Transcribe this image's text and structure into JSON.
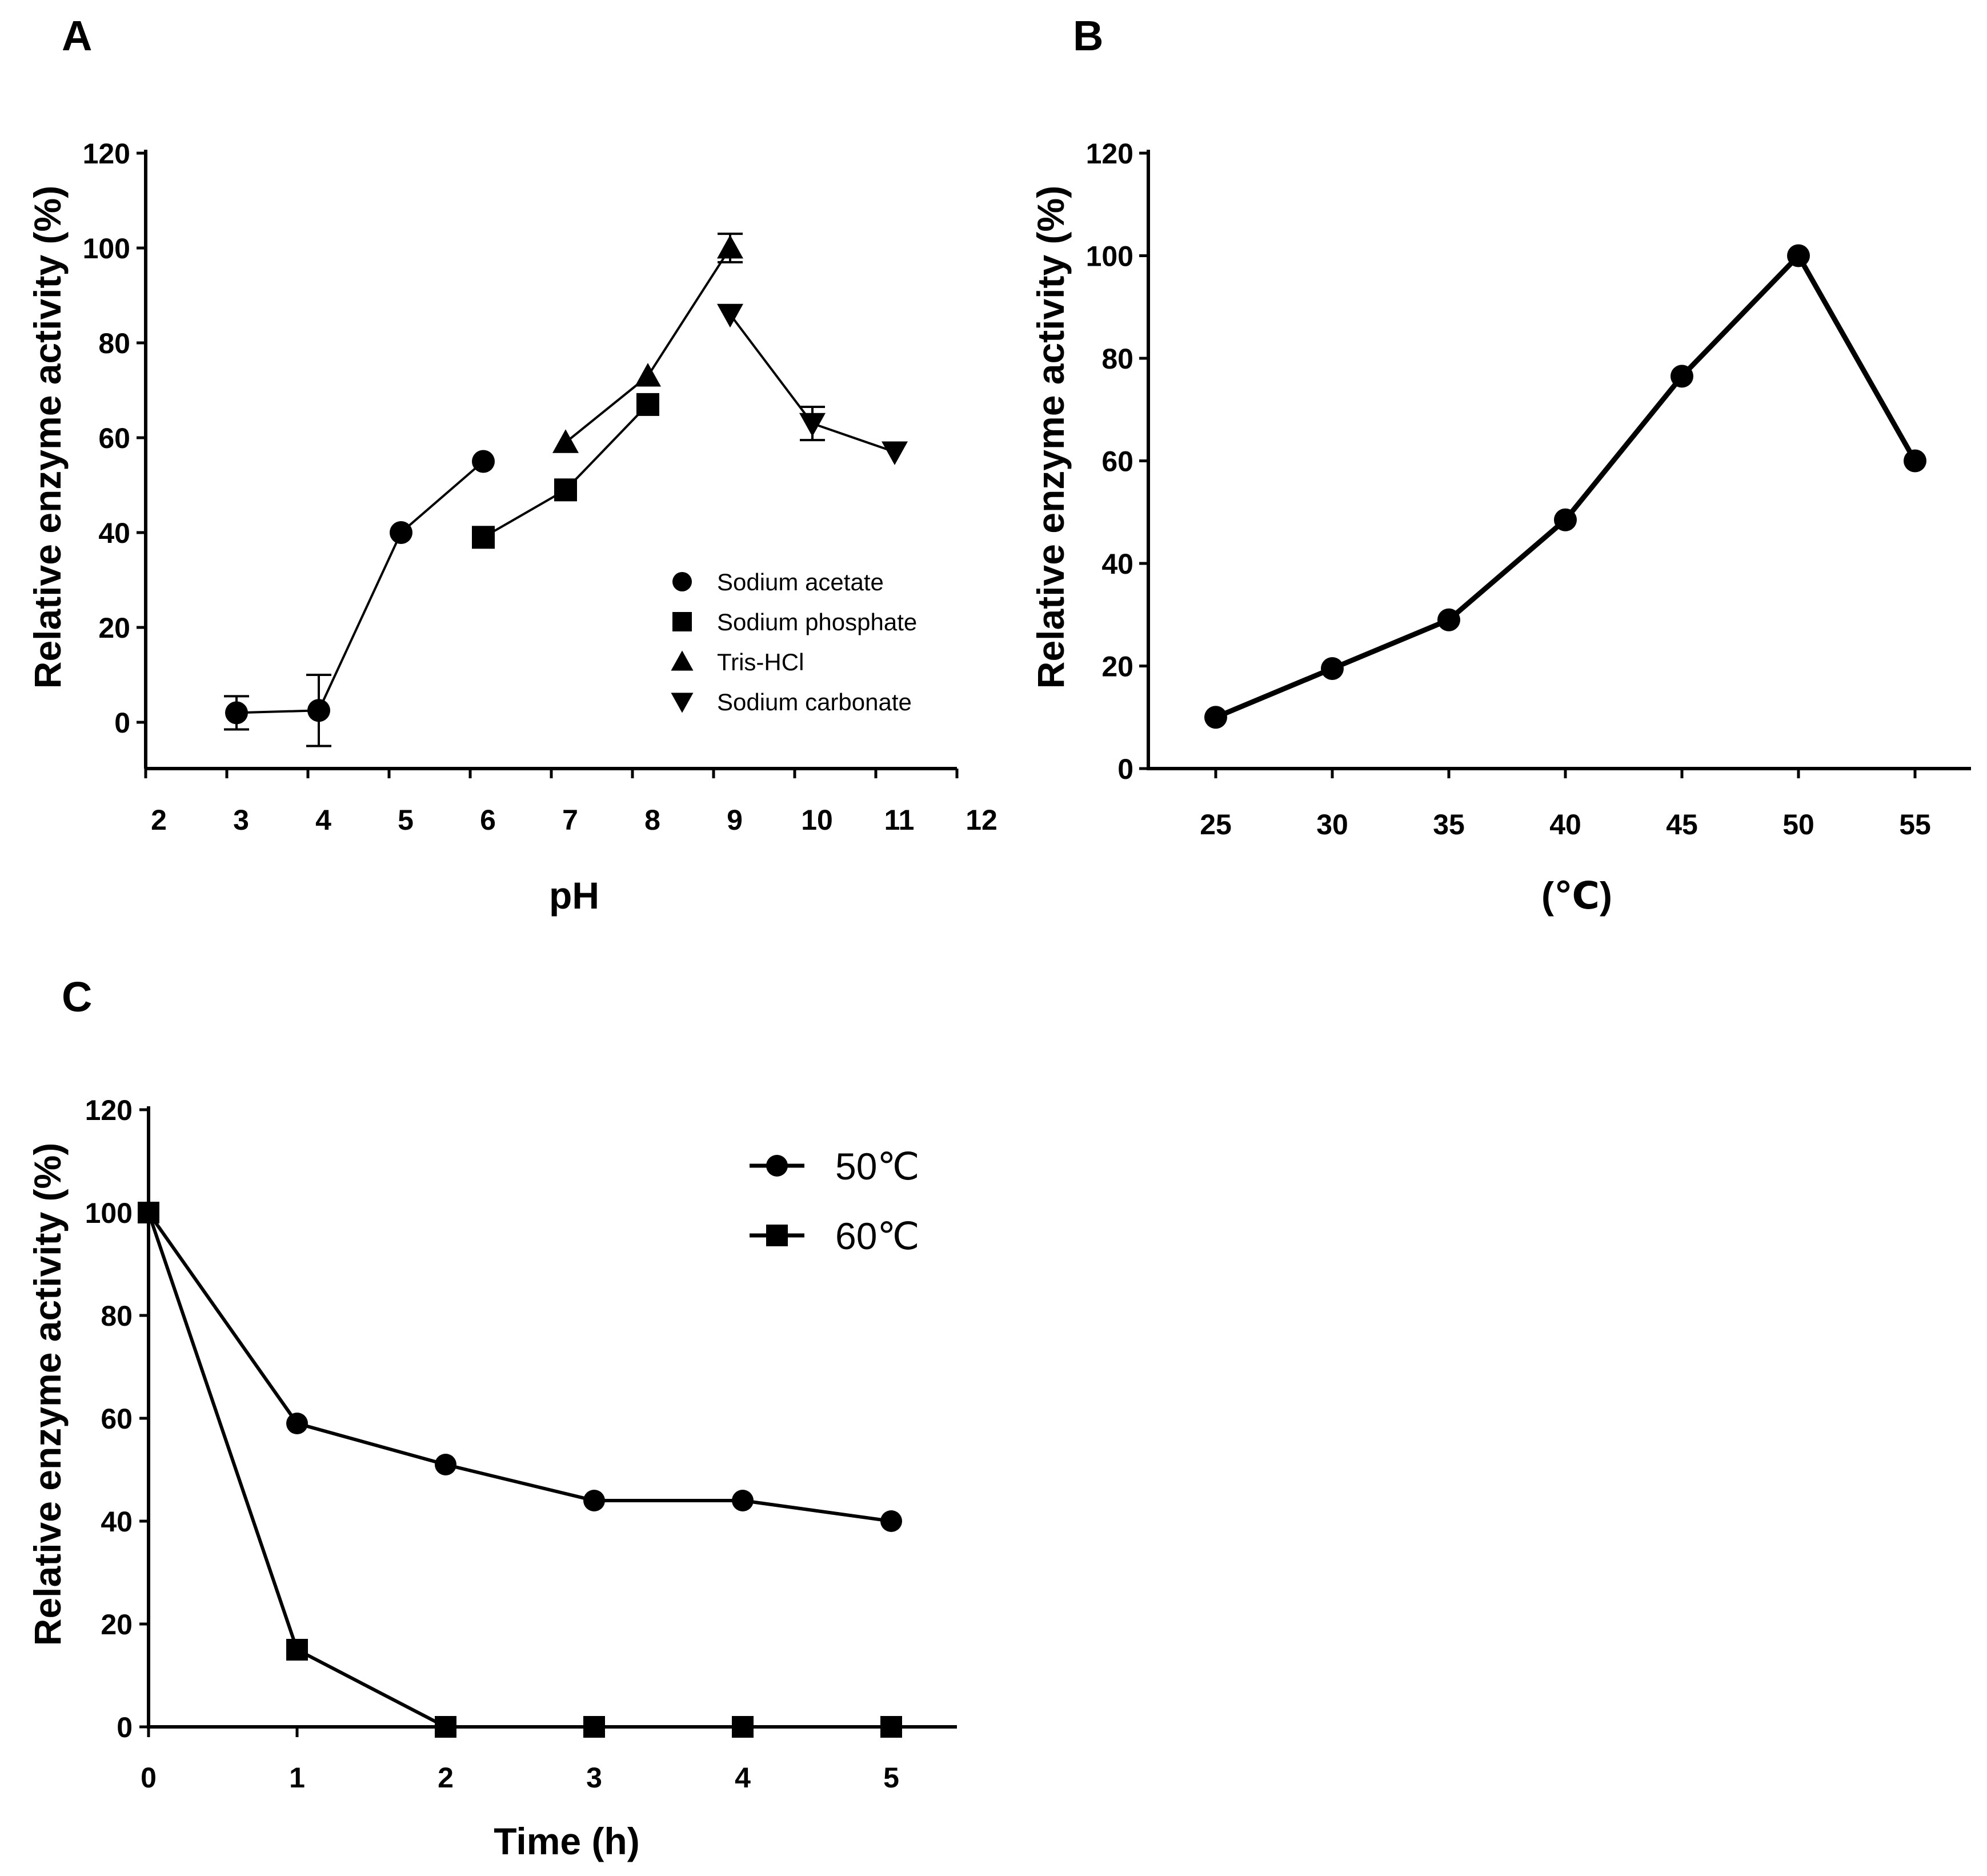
{
  "chart_data": [
    {
      "panel": "A",
      "type": "line",
      "xlabel": "pH",
      "ylabel": "Relative enzyme activity (%)",
      "xlim": [
        2,
        12
      ],
      "ylim": [
        -10,
        120
      ],
      "xticks": [
        "2",
        "3",
        "4",
        "5",
        "6",
        "7",
        "8",
        "9",
        "10",
        "11",
        "12"
      ],
      "yticks": [
        "0",
        "20",
        "40",
        "60",
        "80",
        "100",
        "120"
      ],
      "legend_position": "lower-right",
      "series": [
        {
          "name": "Sodium acetate",
          "marker": "circle",
          "x": [
            3,
            4,
            5,
            6
          ],
          "y": [
            2,
            2.5,
            40,
            55
          ],
          "err": [
            3.5,
            7.5,
            0,
            0
          ]
        },
        {
          "name": "Sodium phosphate",
          "marker": "square",
          "x": [
            6,
            7,
            8
          ],
          "y": [
            39,
            49,
            67
          ],
          "err": [
            0,
            0,
            0
          ]
        },
        {
          "name": "Tris-HCl",
          "marker": "triangle-up",
          "x": [
            7,
            8,
            9
          ],
          "y": [
            59,
            73,
            100
          ],
          "err": [
            0,
            0,
            3
          ]
        },
        {
          "name": "Sodium carbonate",
          "marker": "triangle-down",
          "x": [
            9,
            10,
            11
          ],
          "y": [
            86,
            63,
            57
          ],
          "err": [
            0,
            3.5,
            0
          ]
        }
      ]
    },
    {
      "panel": "B",
      "type": "line",
      "xlabel": "(℃)",
      "ylabel": "Relative enzyme activity (%)",
      "categories": [
        "25",
        "30",
        "35",
        "40",
        "45",
        "50",
        "55"
      ],
      "ylim": [
        0,
        120
      ],
      "yticks": [
        "0",
        "20",
        "40",
        "60",
        "80",
        "100",
        "120"
      ],
      "series": [
        {
          "name": "activity",
          "marker": "circle",
          "values": [
            10,
            19.5,
            29,
            48.5,
            76.5,
            100,
            60
          ]
        }
      ]
    },
    {
      "panel": "C",
      "type": "line",
      "xlabel": "Time (h)",
      "ylabel": "Relative enzyme activity (%)",
      "xlim": [
        0,
        5.5
      ],
      "xticks": [
        "0",
        "1",
        "2",
        "3",
        "4",
        "5"
      ],
      "ylim": [
        0,
        120
      ],
      "yticks": [
        "0",
        "20",
        "40",
        "60",
        "80",
        "100",
        "120"
      ],
      "legend_position": "top-right",
      "series": [
        {
          "name": "50℃",
          "marker": "circle",
          "x": [
            0,
            1,
            2,
            3,
            4,
            5
          ],
          "y": [
            100,
            59,
            51,
            44,
            44,
            40
          ]
        },
        {
          "name": "60℃",
          "marker": "square",
          "x": [
            0,
            1,
            2,
            3,
            4,
            5
          ],
          "y": [
            100,
            15,
            0,
            0,
            0,
            0
          ]
        }
      ]
    }
  ]
}
